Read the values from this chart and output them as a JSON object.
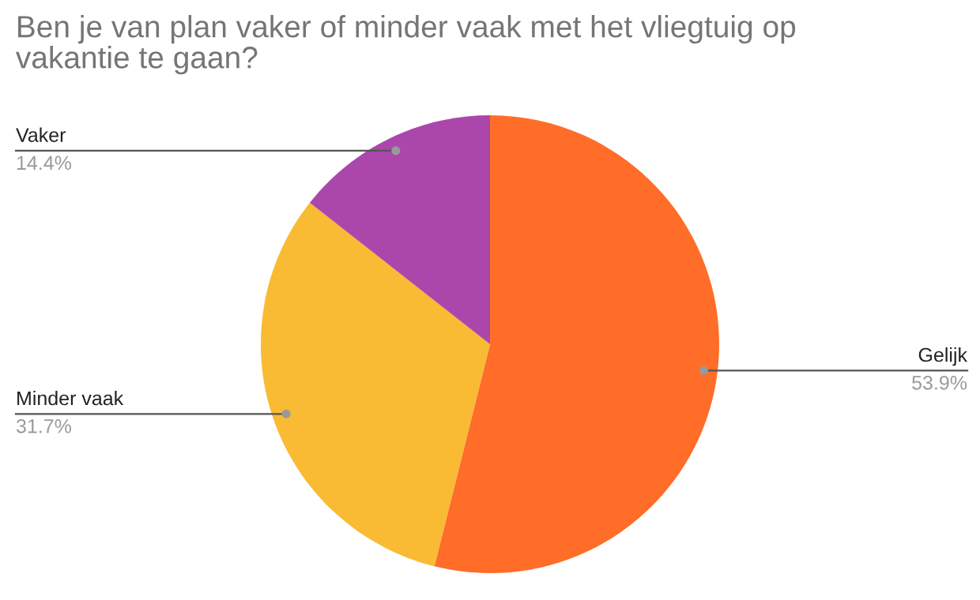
{
  "chart_data": {
    "type": "pie",
    "title": "Ben je van plan vaker of minder vaak met het vliegtuig op\nvakantie te gaan?",
    "categories": [
      "Gelijk",
      "Minder vaak",
      "Vaker"
    ],
    "values": [
      53.9,
      31.7,
      14.4
    ],
    "colors": [
      "#ff6d29",
      "#f8bb33",
      "#ab47ab"
    ],
    "value_labels": [
      "53.9%",
      "31.7%",
      "14.4%"
    ],
    "legend": false
  }
}
